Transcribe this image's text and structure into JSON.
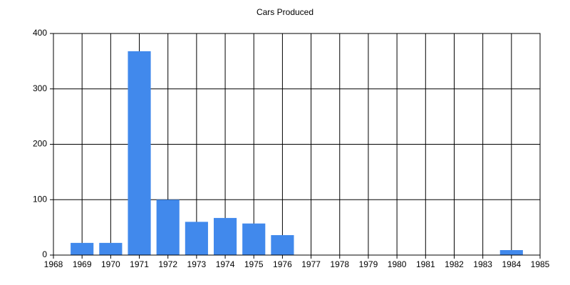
{
  "chart_data": {
    "type": "bar",
    "title": "Cars Produced",
    "x": [
      1969,
      1970,
      1971,
      1972,
      1973,
      1974,
      1975,
      1976,
      1984
    ],
    "values": [
      22,
      22,
      368,
      100,
      60,
      67,
      57,
      36,
      9
    ],
    "color": "#4189ec",
    "xlim": [
      1968,
      1985
    ],
    "xticks": [
      1968,
      1969,
      1970,
      1971,
      1972,
      1973,
      1974,
      1975,
      1976,
      1977,
      1978,
      1979,
      1980,
      1981,
      1982,
      1983,
      1984,
      1985
    ],
    "ylim": [
      0,
      400
    ],
    "yticks": [
      0,
      100,
      200,
      300,
      400
    ],
    "grid": true
  }
}
